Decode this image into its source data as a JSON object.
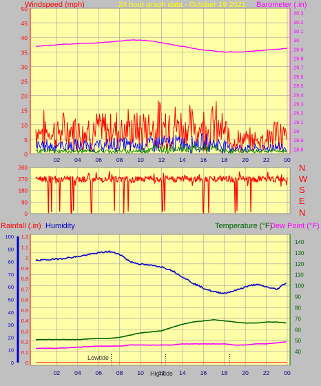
{
  "header": {
    "left_title": "Windspeed (mph)",
    "center_title": "24 hour graph data - October 19 2021",
    "right_title": "Barometer (.in)"
  },
  "direction_labels": [
    "N",
    "W",
    "S",
    "E",
    "N"
  ],
  "bottom_header": {
    "left1": "Rainfall (.in)",
    "left2": "Humidity",
    "right1": "Temperature (°F)",
    "right2": "Dew Point (°F)"
  },
  "tide_labels": {
    "low": "Lowtide",
    "high": "Hightide"
  },
  "colors": {
    "background": "#c0c0c0",
    "plot": "#ffffa8",
    "grid": "#9fa0a0",
    "wind": "#ff0000",
    "wind_avg": "#0000ff",
    "wind_min": "#008000",
    "barometer": "#ff00ff",
    "direction": "#ff0000",
    "humidity": "#0000cc",
    "temperature": "#006400",
    "dewpoint": "#ff00ff",
    "rain": "#ff0000"
  },
  "chart_data": [
    {
      "type": "line",
      "name": "wind_barometer",
      "xticks": [
        "02",
        "04",
        "06",
        "08",
        "10",
        "12",
        "14",
        "16",
        "18",
        "20",
        "22",
        "00"
      ],
      "yticks_left": [
        "0",
        "5",
        "10",
        "15",
        "20",
        "25",
        "30",
        "35",
        "40",
        "45",
        "50"
      ],
      "ylim_left": [
        0,
        50
      ],
      "yticks_right": [
        "28.8",
        "28.9",
        "29",
        "29.1",
        "29.2",
        "29.3",
        "29.4",
        "29.5",
        "29.6",
        "29.7",
        "29.8",
        "29.9",
        "30",
        "30.1",
        "30.2",
        "30.3"
      ],
      "ylim_right": [
        28.75,
        30.35
      ],
      "x_hours": [
        0,
        2,
        4,
        6,
        7,
        8,
        9,
        10,
        11,
        12,
        13,
        14,
        15,
        16,
        17,
        18,
        19,
        20,
        21,
        22,
        23,
        24
      ],
      "series": [
        {
          "key": "barometer",
          "axis": "right",
          "values": [
            29.93,
            29.95,
            29.96,
            29.97,
            29.98,
            29.99,
            30.0,
            30.0,
            29.99,
            29.97,
            29.95,
            29.93,
            29.91,
            29.89,
            29.88,
            29.87,
            29.87,
            29.87,
            29.88,
            29.89,
            29.9,
            29.91
          ]
        },
        {
          "key": "wind_max",
          "axis": "left",
          "values": [
            9,
            8,
            9,
            9,
            9,
            10,
            9,
            9,
            10,
            11,
            11,
            10,
            10,
            10,
            11,
            8,
            5,
            5,
            5,
            6,
            8,
            6
          ]
        },
        {
          "key": "wind_avg",
          "axis": "left",
          "values": [
            3,
            3,
            3,
            3,
            3,
            4,
            3,
            3,
            4,
            4,
            4,
            4,
            4,
            4,
            4,
            3,
            2,
            2,
            2,
            2,
            3,
            2
          ]
        },
        {
          "key": "wind_min",
          "axis": "left",
          "values": [
            1,
            1,
            1,
            1,
            1,
            1,
            1,
            1,
            2,
            2,
            2,
            2,
            2,
            2,
            2,
            1,
            1,
            1,
            1,
            1,
            1,
            1
          ]
        }
      ]
    },
    {
      "type": "line",
      "name": "wind_direction",
      "yticks": [
        "360",
        "270",
        "180",
        "90",
        "0"
      ],
      "ylim": [
        0,
        360
      ],
      "xticks": [
        "02",
        "04",
        "06",
        "08",
        "10",
        "12",
        "14",
        "16",
        "18",
        "20",
        "22",
        "00"
      ],
      "typical_deg": 270,
      "drops_hours": [
        1.2,
        1.5,
        2.3,
        3.4,
        3.6,
        5.3,
        7.5,
        8.4,
        8.8,
        12.1,
        12.3,
        16.0,
        16.5,
        19.0,
        19.2,
        20.5
      ]
    },
    {
      "type": "line",
      "name": "rain_humidity_temp",
      "xticks": [
        "02",
        "04",
        "06",
        "08",
        "10",
        "12",
        "14",
        "16",
        "18",
        "20",
        "22",
        "00"
      ],
      "yticks_left_humidity": [
        "0",
        "10",
        "20",
        "30",
        "40",
        "50",
        "60",
        "70",
        "80",
        "90",
        "100"
      ],
      "yticks_left_rain": [
        "0",
        "0.1",
        "0.2",
        "0.3",
        "0.4",
        "0.5",
        "0.6",
        "0.7",
        "0.8",
        "0.9",
        "1",
        "1.1",
        "1.2"
      ],
      "yticks_right": [
        "40",
        "50",
        "60",
        "70",
        "80",
        "90",
        "100",
        "110",
        "120",
        "130",
        "140"
      ],
      "ylim_right": [
        30,
        145
      ],
      "ylim_humidity": [
        0,
        100
      ],
      "x_hours": [
        0,
        2,
        4,
        6,
        7,
        8,
        9,
        10,
        11,
        12,
        13,
        14,
        15,
        16,
        17,
        18,
        19,
        20,
        21,
        22,
        23,
        24
      ],
      "series": [
        {
          "key": "humidity",
          "values": [
            81,
            82,
            84,
            87,
            88,
            86,
            80,
            78,
            77,
            76,
            73,
            68,
            63,
            59,
            56,
            55,
            57,
            60,
            62,
            60,
            58,
            64
          ]
        },
        {
          "key": "temperature",
          "values": [
            51,
            51,
            51,
            52,
            52,
            53,
            55,
            57,
            58,
            59,
            62,
            65,
            67,
            68,
            69,
            68,
            67,
            66,
            66,
            67,
            67,
            66
          ]
        },
        {
          "key": "dewpoint",
          "values": [
            43,
            43,
            44,
            45,
            45,
            45,
            46,
            46,
            46,
            46,
            46,
            47,
            47,
            47,
            47,
            47,
            46,
            46,
            47,
            47,
            48,
            49
          ]
        },
        {
          "key": "rain",
          "values": [
            0,
            0,
            0,
            0,
            0,
            0,
            0,
            0,
            0,
            0,
            0,
            0,
            0,
            0,
            0,
            0,
            0,
            0,
            0,
            0,
            0,
            0
          ]
        }
      ],
      "tide_hours": {
        "low": 7.2,
        "high": 12.4,
        "markers": [
          12.4,
          18.5
        ]
      }
    }
  ]
}
